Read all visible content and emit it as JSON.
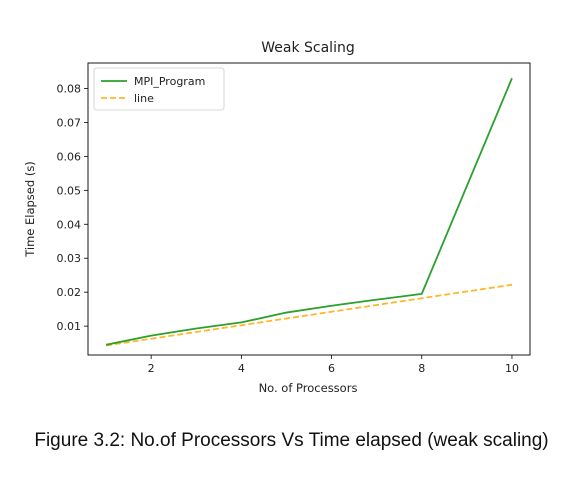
{
  "chart_data": {
    "type": "line",
    "title": "Weak Scaling",
    "xlabel": "No. of Processors",
    "ylabel": "Time Elapsed (s)",
    "xlim": [
      0.6,
      10.4
    ],
    "ylim": [
      0.0015,
      0.0875
    ],
    "xticks": [
      2,
      4,
      6,
      8,
      10
    ],
    "xtick_labels": [
      "2",
      "4",
      "6",
      "8",
      "10"
    ],
    "yticks": [
      0.01,
      0.02,
      0.03,
      0.04,
      0.05,
      0.06,
      0.07,
      0.08
    ],
    "ytick_labels": [
      "0.01",
      "0.02",
      "0.03",
      "0.04",
      "0.05",
      "0.06",
      "0.07",
      "0.08"
    ],
    "grid": false,
    "legend_position": "top-left",
    "series": [
      {
        "name": "MPI_Program",
        "color": "#2ca02c",
        "style": "solid",
        "x": [
          1,
          2,
          3,
          4,
          5,
          6,
          7,
          8,
          10
        ],
        "y": [
          0.0045,
          0.0072,
          0.0093,
          0.0111,
          0.014,
          0.016,
          0.0178,
          0.0195,
          0.083
        ]
      },
      {
        "name": "line",
        "color": "#ffb627",
        "style": "dashed",
        "x": [
          1,
          10
        ],
        "y": [
          0.0043,
          0.0222
        ]
      }
    ]
  },
  "caption": "Figure 3.2: No.of Processors Vs Time elapsed (weak scaling)"
}
